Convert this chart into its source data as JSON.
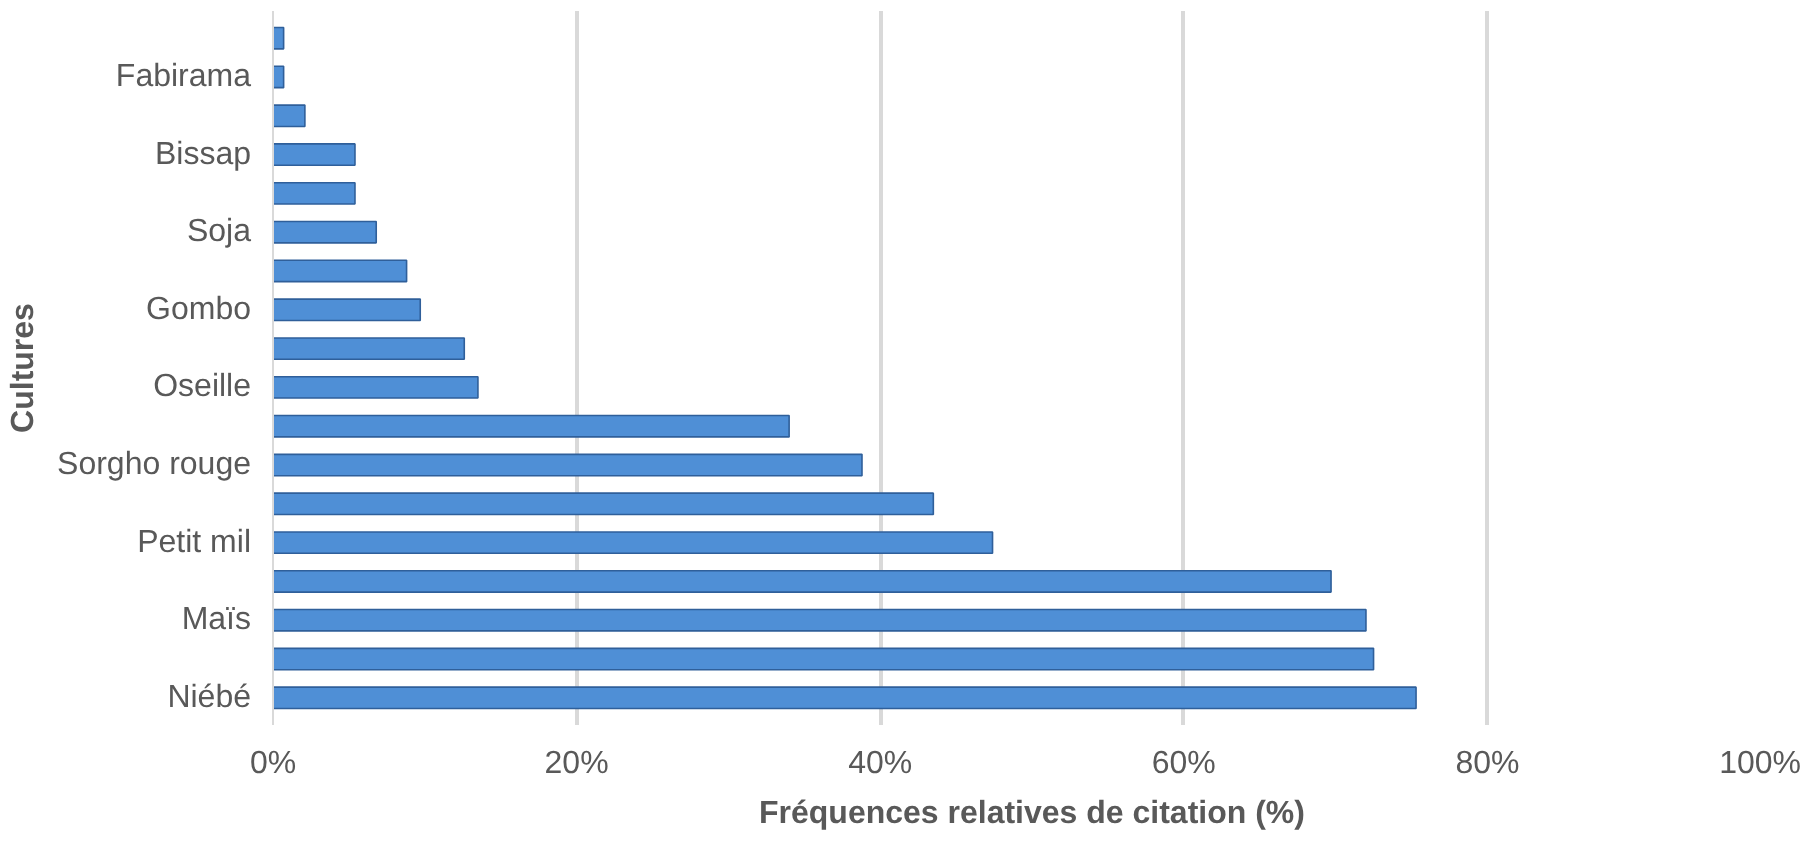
{
  "chart_data": {
    "type": "bar",
    "orientation": "horizontal",
    "xlabel": "Fréquences relatives de citation (%)",
    "ylabel": "Cultures",
    "categories": [
      null,
      "Fabirama",
      null,
      "Bissap",
      null,
      "Soja",
      null,
      "Gombo",
      null,
      "Oseille",
      null,
      "Sorgho rouge",
      null,
      "Petit mil",
      null,
      "Maïs",
      null,
      "Niébé"
    ],
    "values": [
      0.7,
      0.7,
      2.1,
      5.4,
      5.4,
      6.8,
      8.8,
      9.7,
      12.6,
      13.5,
      34,
      38.8,
      43.5,
      47.4,
      69.7,
      72,
      72.5,
      75.3
    ],
    "color": "#4f8fd6",
    "xlim": [
      0,
      100
    ],
    "xticks": [
      {
        "value": 0,
        "label": "0%"
      },
      {
        "value": 20,
        "label": "20%"
      },
      {
        "value": 40,
        "label": "40%"
      },
      {
        "value": 60,
        "label": "60%"
      },
      {
        "value": 80,
        "label": "80%"
      },
      {
        "value": 100,
        "label": "100%"
      }
    ],
    "grid": "x"
  }
}
